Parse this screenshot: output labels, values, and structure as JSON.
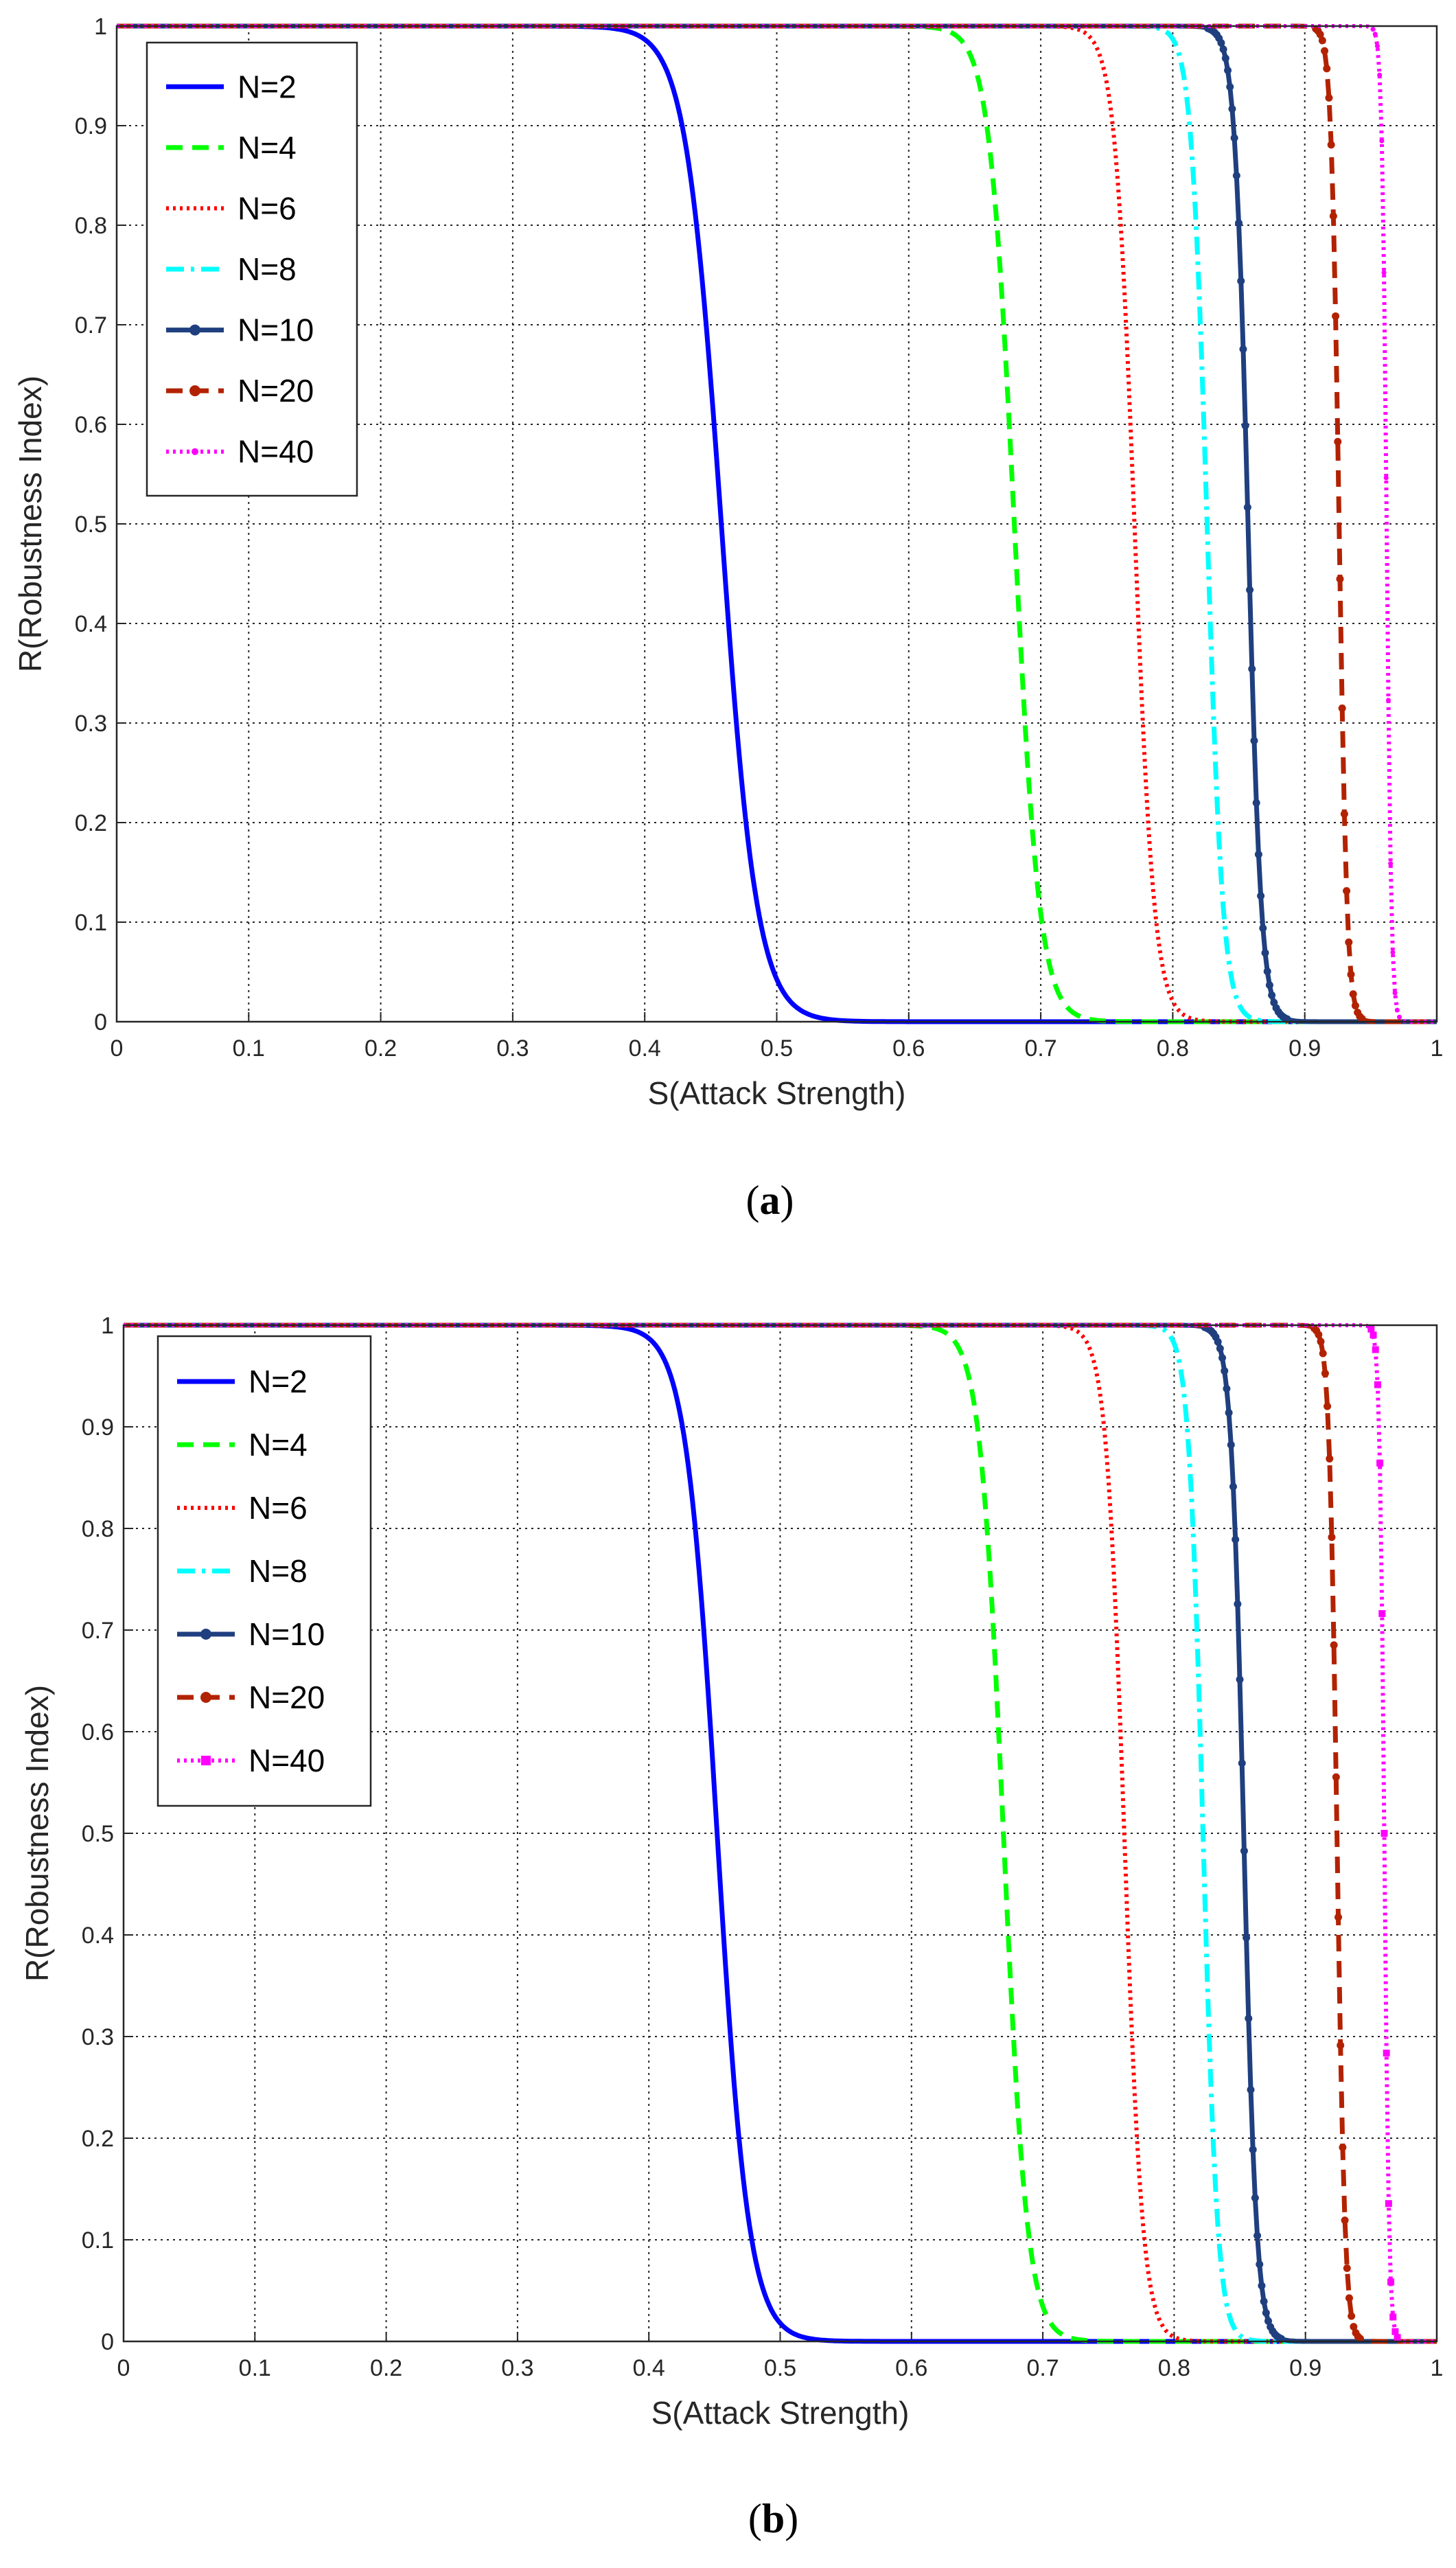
{
  "chart_data": [
    {
      "type": "line",
      "caption_letter": "a",
      "title": "",
      "xlabel": "S(Attack Strength)",
      "ylabel": "R(Robustness Index)",
      "xlim": [
        0,
        1
      ],
      "ylim": [
        0,
        1
      ],
      "xticks": [
        0,
        0.1,
        0.2,
        0.3,
        0.4,
        0.5,
        0.6,
        0.7,
        0.8,
        0.9,
        1
      ],
      "yticks": [
        0,
        0.1,
        0.2,
        0.3,
        0.4,
        0.5,
        0.6,
        0.7,
        0.8,
        0.9,
        1
      ],
      "grid": true,
      "legend_position": "top-left",
      "series": [
        {
          "name": "N=2",
          "color": "#0000ff",
          "style": "solid",
          "marker": "none",
          "s_mid": 0.458,
          "s_width": 0.0135
        },
        {
          "name": "N=4",
          "color": "#00ff00",
          "style": "dashed",
          "marker": "none",
          "s_mid": 0.68,
          "s_width": 0.0095
        },
        {
          "name": "N=6",
          "color": "#ff0000",
          "style": "dotted",
          "marker": "none",
          "s_mid": 0.771,
          "s_width": 0.0075
        },
        {
          "name": "N=8",
          "color": "#00ffff",
          "style": "dashdot",
          "marker": "none",
          "s_mid": 0.826,
          "s_width": 0.006
        },
        {
          "name": "N=10",
          "color": "#1f3f7f",
          "style": "solid",
          "marker": "dot",
          "s_mid": 0.857,
          "s_width": 0.005
        },
        {
          "name": "N=20",
          "color": "#b22200",
          "style": "dashed",
          "marker": "dot",
          "s_mid": 0.926,
          "s_width": 0.003
        },
        {
          "name": "N=40",
          "color": "#ff00ff",
          "style": "dotted",
          "marker": "star",
          "s_mid": 0.962,
          "s_width": 0.0018
        }
      ]
    },
    {
      "type": "line",
      "caption_letter": "b",
      "title": "",
      "xlabel": "S(Attack Strength)",
      "ylabel": "R(Robustness Index)",
      "xlim": [
        0,
        1
      ],
      "ylim": [
        0,
        1
      ],
      "xticks": [
        0,
        0.1,
        0.2,
        0.3,
        0.4,
        0.5,
        0.6,
        0.7,
        0.8,
        0.9,
        1
      ],
      "yticks": [
        0,
        0.1,
        0.2,
        0.3,
        0.4,
        0.5,
        0.6,
        0.7,
        0.8,
        0.9,
        1
      ],
      "grid": true,
      "legend_position": "top-left",
      "series": [
        {
          "name": "N=2",
          "color": "#0000ff",
          "style": "solid",
          "marker": "none",
          "s_mid": 0.452,
          "s_width": 0.012
        },
        {
          "name": "N=4",
          "color": "#00ff00",
          "style": "dashed",
          "marker": "none",
          "s_mid": 0.67,
          "s_width": 0.009
        },
        {
          "name": "N=6",
          "color": "#ff0000",
          "style": "dotted",
          "marker": "none",
          "s_mid": 0.762,
          "s_width": 0.007
        },
        {
          "name": "N=8",
          "color": "#00ffff",
          "style": "dashdot",
          "marker": "none",
          "s_mid": 0.822,
          "s_width": 0.0055
        },
        {
          "name": "N=10",
          "color": "#1f3f7f",
          "style": "solid",
          "marker": "dot",
          "s_mid": 0.853,
          "s_width": 0.0048
        },
        {
          "name": "N=20",
          "color": "#b22200",
          "style": "dashed",
          "marker": "dot",
          "s_mid": 0.924,
          "s_width": 0.003
        },
        {
          "name": "N=40",
          "color": "#ff00ff",
          "style": "dotted",
          "marker": "square",
          "s_mid": 0.96,
          "s_width": 0.0018
        }
      ]
    }
  ]
}
